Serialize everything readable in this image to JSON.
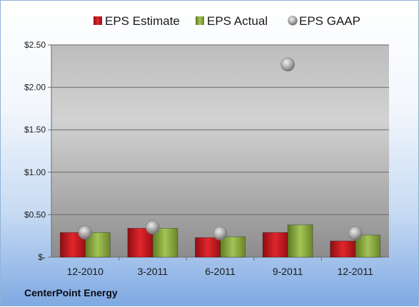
{
  "company": "CenterPoint Energy",
  "colors": {
    "estimate": "#c8161d",
    "actual": "#8fb03e",
    "gaap": "#a9a9a9"
  },
  "chart_data": {
    "type": "bar",
    "categories": [
      "12-2010",
      "3-2011",
      "6-2011",
      "9-2011",
      "12-2011"
    ],
    "series": [
      {
        "name": "EPS Estimate",
        "kind": "bar",
        "values": [
          0.29,
          0.34,
          0.23,
          0.29,
          0.19
        ]
      },
      {
        "name": "EPS Actual",
        "kind": "bar",
        "values": [
          0.29,
          0.34,
          0.24,
          0.38,
          0.26
        ]
      },
      {
        "name": "EPS GAAP",
        "kind": "scatter",
        "values": [
          0.29,
          0.35,
          0.28,
          2.27,
          0.28
        ]
      }
    ],
    "yticks": [
      "$-",
      "$0.50",
      "$1.00",
      "$1.50",
      "$2.00",
      "$2.50"
    ],
    "ytick_values": [
      0,
      0.5,
      1.0,
      1.5,
      2.0,
      2.5
    ],
    "ylim": [
      0,
      2.5
    ],
    "grid": true,
    "legend_position": "top"
  }
}
